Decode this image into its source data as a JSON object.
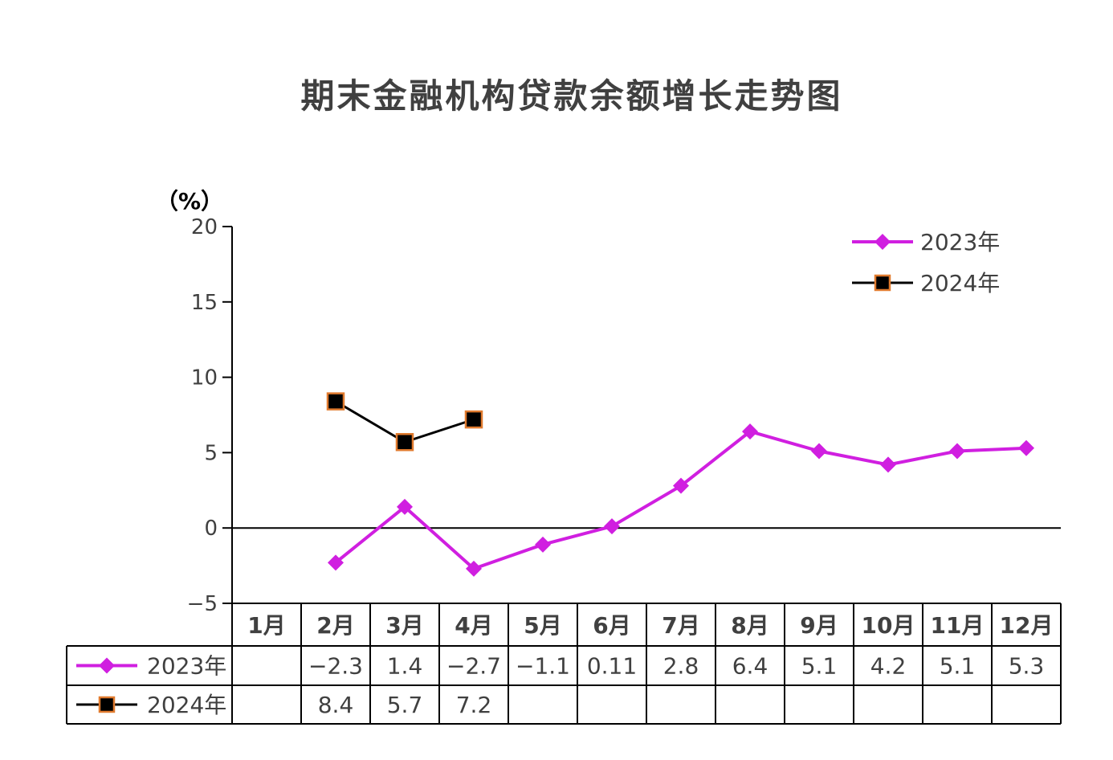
{
  "chart_data": {
    "type": "line",
    "title": "期末金融机构贷款余额增长走势图",
    "unit_label": "（%）",
    "ylim": [
      -5,
      20
    ],
    "y_ticks": [
      "−5",
      "0",
      "5",
      "10",
      "15",
      "20"
    ],
    "y_tick_values": [
      -5,
      0,
      5,
      10,
      15,
      20
    ],
    "categories": [
      "1月",
      "2月",
      "3月",
      "4月",
      "5月",
      "6月",
      "7月",
      "8月",
      "9月",
      "10月",
      "11月",
      "12月"
    ],
    "series": [
      {
        "name": "2023年",
        "color": "#D01FE0",
        "marker": "diamond",
        "values": [
          null,
          -2.3,
          1.4,
          -2.7,
          -1.1,
          0.11,
          2.8,
          6.4,
          5.1,
          4.2,
          5.1,
          5.3
        ],
        "labels": [
          "",
          "−2.3",
          "1.4",
          "−2.7",
          "−1.1",
          "0.11",
          "2.8",
          "6.4",
          "5.1",
          "4.2",
          "5.1",
          "5.3"
        ]
      },
      {
        "name": "2024年",
        "color": "#000000",
        "marker": "square",
        "marker_edge": "#E07A2E",
        "values": [
          null,
          8.4,
          5.7,
          7.2,
          null,
          null,
          null,
          null,
          null,
          null,
          null,
          null
        ],
        "labels": [
          "",
          "8.4",
          "5.7",
          "7.2",
          "",
          "",
          "",
          "",
          "",
          "",
          "",
          ""
        ]
      }
    ],
    "legend_position": "top-right",
    "grid": false,
    "data_table": true
  }
}
